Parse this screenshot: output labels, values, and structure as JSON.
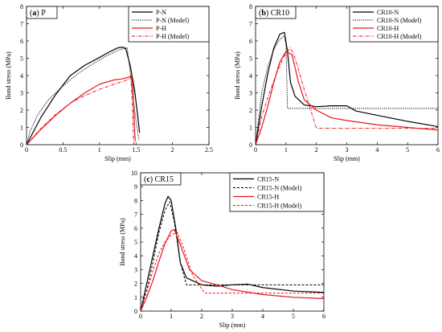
{
  "chart_data": [
    {
      "type": "line",
      "panel_label": "(a) P",
      "panel_letter": "a",
      "panel_name": "P",
      "xlabel": "Slip (mm)",
      "ylabel": "Bond stress (MPa)",
      "xlim": [
        0,
        2.5
      ],
      "ylim": [
        0,
        8
      ],
      "xticks": [
        "0",
        "0.5",
        "1",
        "1.5",
        "2",
        "2.5"
      ],
      "yticks": [
        "0",
        "1",
        "2",
        "3",
        "4",
        "5",
        "6",
        "7",
        "8"
      ],
      "legend_position": "top-right",
      "series": [
        {
          "name": "P-N",
          "color": "#000000",
          "dash": "solid",
          "points": [
            [
              0,
              0
            ],
            [
              0.2,
              1.6
            ],
            [
              0.4,
              2.9
            ],
            [
              0.6,
              4.0
            ],
            [
              0.8,
              4.6
            ],
            [
              1.0,
              5.05
            ],
            [
              1.15,
              5.4
            ],
            [
              1.25,
              5.6
            ],
            [
              1.32,
              5.65
            ],
            [
              1.36,
              5.55
            ],
            [
              1.42,
              4.6
            ],
            [
              1.48,
              3.2
            ],
            [
              1.52,
              1.8
            ],
            [
              1.55,
              0.7
            ]
          ]
        },
        {
          "name": "P-N (Model)",
          "color": "#000000",
          "dash": "dotted",
          "points": [
            [
              0,
              0
            ],
            [
              0.05,
              0.8
            ],
            [
              0.15,
              1.7
            ],
            [
              0.3,
              2.6
            ],
            [
              0.5,
              3.4
            ],
            [
              0.7,
              4.1
            ],
            [
              0.9,
              4.65
            ],
            [
              1.1,
              5.15
            ],
            [
              1.25,
              5.45
            ],
            [
              1.38,
              5.62
            ],
            [
              1.42,
              4.2
            ],
            [
              1.46,
              2.7
            ],
            [
              1.5,
              1.4
            ],
            [
              1.54,
              0.3
            ]
          ]
        },
        {
          "name": "P-H",
          "color": "#e8141b",
          "dash": "solid",
          "points": [
            [
              0,
              0
            ],
            [
              0.2,
              0.9
            ],
            [
              0.4,
              1.7
            ],
            [
              0.6,
              2.4
            ],
            [
              0.8,
              3.0
            ],
            [
              1.0,
              3.5
            ],
            [
              1.2,
              3.75
            ],
            [
              1.3,
              3.8
            ],
            [
              1.4,
              3.9
            ],
            [
              1.44,
              3.98
            ],
            [
              1.46,
              3.2
            ],
            [
              1.47,
              2.0
            ],
            [
              1.48,
              1.0
            ],
            [
              1.49,
              0.2
            ]
          ]
        },
        {
          "name": "P-H (Model)",
          "color": "#e8141b",
          "dash": "dashdot",
          "points": [
            [
              0,
              0
            ],
            [
              0.2,
              0.95
            ],
            [
              0.4,
              1.75
            ],
            [
              0.6,
              2.4
            ],
            [
              0.8,
              2.85
            ],
            [
              1.0,
              3.2
            ],
            [
              1.2,
              3.5
            ],
            [
              1.35,
              3.7
            ],
            [
              1.43,
              3.88
            ],
            [
              1.45,
              2.4
            ],
            [
              1.46,
              1.0
            ],
            [
              1.47,
              0.0
            ]
          ]
        }
      ]
    },
    {
      "type": "line",
      "panel_label": "(b) CR10",
      "panel_letter": "b",
      "panel_name": "CR10",
      "xlabel": "Slip (mm)",
      "ylabel": "Bond stress (MPa)",
      "xlim": [
        0,
        6
      ],
      "ylim": [
        0,
        8
      ],
      "xticks": [
        "0",
        "1",
        "2",
        "3",
        "4",
        "5",
        "6"
      ],
      "yticks": [
        "0",
        "1",
        "2",
        "3",
        "4",
        "5",
        "6",
        "7",
        "8"
      ],
      "legend_position": "top-right",
      "series": [
        {
          "name": "CR10-N",
          "color": "#000000",
          "dash": "solid",
          "points": [
            [
              0,
              0
            ],
            [
              0.2,
              2.2
            ],
            [
              0.4,
              4.1
            ],
            [
              0.6,
              5.6
            ],
            [
              0.8,
              6.4
            ],
            [
              0.95,
              6.5
            ],
            [
              1.05,
              5.4
            ],
            [
              1.15,
              3.6
            ],
            [
              1.3,
              2.8
            ],
            [
              1.6,
              2.3
            ],
            [
              2.0,
              2.2
            ],
            [
              2.5,
              2.25
            ],
            [
              3.0,
              2.25
            ],
            [
              3.3,
              1.95
            ],
            [
              4.0,
              1.7
            ],
            [
              5.0,
              1.35
            ],
            [
              6.0,
              1.05
            ]
          ]
        },
        {
          "name": "CR10-N (Model)",
          "color": "#000000",
          "dash": "dotted",
          "points": [
            [
              0,
              0
            ],
            [
              0.2,
              3.0
            ],
            [
              0.4,
              4.5
            ],
            [
              0.6,
              5.5
            ],
            [
              0.8,
              6.1
            ],
            [
              0.95,
              6.3
            ],
            [
              1.0,
              5.8
            ],
            [
              1.05,
              2.1
            ],
            [
              6.0,
              2.1
            ]
          ]
        },
        {
          "name": "CR10-H",
          "color": "#e8141b",
          "dash": "solid",
          "points": [
            [
              0,
              0
            ],
            [
              0.2,
              1.0
            ],
            [
              0.4,
              2.2
            ],
            [
              0.6,
              3.6
            ],
            [
              0.8,
              4.8
            ],
            [
              1.0,
              5.4
            ],
            [
              1.2,
              5.2
            ],
            [
              1.4,
              3.7
            ],
            [
              1.6,
              2.6
            ],
            [
              2.0,
              2.0
            ],
            [
              2.5,
              1.55
            ],
            [
              3.0,
              1.4
            ],
            [
              4.0,
              1.15
            ],
            [
              5.0,
              1.0
            ],
            [
              6.0,
              0.85
            ]
          ]
        },
        {
          "name": "CR10-H (Model)",
          "color": "#e8141b",
          "dash": "dashdot",
          "points": [
            [
              0,
              0
            ],
            [
              0.2,
              1.6
            ],
            [
              0.4,
              2.7
            ],
            [
              0.6,
              3.7
            ],
            [
              0.8,
              4.6
            ],
            [
              1.0,
              5.3
            ],
            [
              1.15,
              5.6
            ],
            [
              1.3,
              5.0
            ],
            [
              1.6,
              3.2
            ],
            [
              2.0,
              0.95
            ],
            [
              6.0,
              0.95
            ]
          ]
        }
      ]
    },
    {
      "type": "line",
      "panel_label": "(c) CR15",
      "panel_letter": "c",
      "panel_name": "CR15",
      "xlabel": "Slip (mm)",
      "ylabel": "Bond stress (MPa)",
      "xlim": [
        0,
        6
      ],
      "ylim": [
        0,
        10
      ],
      "xticks": [
        "0",
        "1",
        "2",
        "3",
        "4",
        "5",
        "6"
      ],
      "yticks": [
        "0",
        "1",
        "2",
        "3",
        "4",
        "5",
        "6",
        "7",
        "8",
        "9",
        "10"
      ],
      "legend_position": "top-right",
      "series": [
        {
          "name": "CR15-N",
          "color": "#000000",
          "dash": "solid",
          "points": [
            [
              0,
              0
            ],
            [
              0.2,
              2.0
            ],
            [
              0.4,
              4.0
            ],
            [
              0.6,
              6.0
            ],
            [
              0.8,
              7.8
            ],
            [
              0.9,
              8.3
            ],
            [
              1.0,
              8.0
            ],
            [
              1.15,
              6.0
            ],
            [
              1.3,
              3.5
            ],
            [
              1.5,
              2.4
            ],
            [
              2.0,
              1.9
            ],
            [
              2.5,
              1.8
            ],
            [
              3.0,
              1.9
            ],
            [
              3.5,
              1.95
            ],
            [
              4.0,
              1.7
            ],
            [
              5.0,
              1.45
            ],
            [
              6.0,
              1.35
            ]
          ]
        },
        {
          "name": "CR15-N (Model)",
          "color": "#000000",
          "dash": "dashed",
          "points": [
            [
              0,
              0
            ],
            [
              0.2,
              1.5
            ],
            [
              0.4,
              3.5
            ],
            [
              0.6,
              5.7
            ],
            [
              0.8,
              7.3
            ],
            [
              0.95,
              7.9
            ],
            [
              1.1,
              6.5
            ],
            [
              1.3,
              3.5
            ],
            [
              1.5,
              1.9
            ],
            [
              6.0,
              1.9
            ]
          ]
        },
        {
          "name": "CR15-H",
          "color": "#e8141b",
          "dash": "solid",
          "points": [
            [
              0,
              0
            ],
            [
              0.2,
              1.0
            ],
            [
              0.4,
              2.2
            ],
            [
              0.6,
              3.6
            ],
            [
              0.8,
              4.9
            ],
            [
              1.0,
              5.8
            ],
            [
              1.1,
              5.9
            ],
            [
              1.3,
              4.8
            ],
            [
              1.6,
              3.0
            ],
            [
              2.0,
              2.2
            ],
            [
              2.5,
              1.9
            ],
            [
              3.0,
              1.55
            ],
            [
              4.0,
              1.2
            ],
            [
              5.0,
              1.0
            ],
            [
              6.0,
              0.9
            ]
          ]
        },
        {
          "name": "CR15-H (Model)",
          "color": "#e8141b",
          "dash": "dashed",
          "points": [
            [
              0,
              0
            ],
            [
              0.2,
              1.4
            ],
            [
              0.4,
              2.9
            ],
            [
              0.6,
              4.2
            ],
            [
              0.8,
              5.0
            ],
            [
              1.0,
              5.5
            ],
            [
              1.2,
              5.7
            ],
            [
              1.4,
              4.6
            ],
            [
              1.7,
              2.6
            ],
            [
              2.1,
              1.3
            ],
            [
              6.0,
              1.3
            ]
          ]
        }
      ]
    }
  ]
}
